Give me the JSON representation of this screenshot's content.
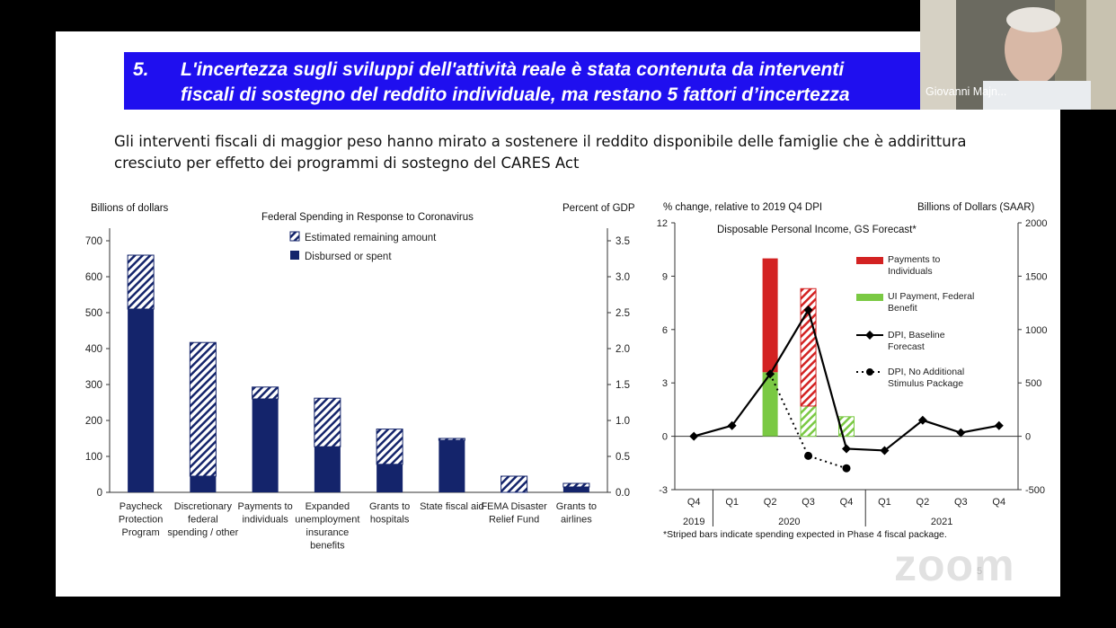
{
  "slide": {
    "title_number": "5.",
    "title_line1": "L'incertezza sugli sviluppi dell'attività reale è stata contenuta da interventi",
    "title_line2": "fiscali di sostegno del reddito individuale, ma restano 5 fattori d’incertezza",
    "subtitle_line1": "Gli interventi fiscali di maggior peso hanno mirato a sostenere il reddito disponibile delle famiglie che è addirittura",
    "subtitle_line2": "cresciuto per effetto dei programmi di sostegno del CARES Act",
    "page_number": "5"
  },
  "webcam": {
    "participant_name": "Giovanni Majn..."
  },
  "watermark": "zoom",
  "colors": {
    "title_band": "#1f0fef",
    "navy": "#14246b",
    "red": "#d32222",
    "green": "#7ac943"
  },
  "chart_data": [
    {
      "type": "bar",
      "title": "Federal Spending in Response to Coronavirus",
      "ylabel": "Billions of dollars",
      "y2label": "Percent of GDP",
      "ylim": [
        0,
        700
      ],
      "y2lim": [
        0,
        3.5
      ],
      "yticks": [
        "0",
        "100",
        "200",
        "300",
        "400",
        "500",
        "600",
        "700"
      ],
      "y2ticks": [
        "0.0",
        "0.5",
        "1.0",
        "1.5",
        "2.0",
        "2.5",
        "3.0",
        "3.5"
      ],
      "legend": [
        "Estimated remaining amount",
        "Disbursed or spent"
      ],
      "categories": [
        [
          "Paycheck",
          "Protection",
          "Program"
        ],
        [
          "Discretionary",
          "federal",
          "spending / other"
        ],
        [
          "Payments to",
          "individuals"
        ],
        [
          "Expanded",
          "unemployment",
          "insurance",
          "benefits"
        ],
        [
          "Grants to",
          "hospitals"
        ],
        [
          "State fiscal aid"
        ],
        [
          "FEMA Disaster",
          "Relief Fund"
        ],
        [
          "Grants to",
          "airlines"
        ]
      ],
      "series": [
        {
          "name": "Disbursed or spent",
          "values": [
            510,
            45,
            260,
            127,
            78,
            145,
            0,
            15
          ]
        },
        {
          "name": "Estimated remaining amount",
          "values": [
            150,
            372,
            33,
            135,
            98,
            5,
            45,
            10
          ]
        }
      ]
    },
    {
      "type": "bar",
      "title": "Disposable Personal Income, GS Forecast*",
      "ylabel": "% change, relative to 2019 Q4 DPI",
      "y2label": "Billions of Dollars (SAAR)",
      "ylim": [
        -3,
        12
      ],
      "y2lim": [
        -500,
        2000
      ],
      "yticks": [
        "-3",
        "0",
        "3",
        "6",
        "9",
        "12"
      ],
      "y2ticks": [
        "-500",
        "0",
        "500",
        "1000",
        "1500",
        "2000"
      ],
      "quarters": [
        "Q4",
        "Q1",
        "Q2",
        "Q3",
        "Q4",
        "Q1",
        "Q2",
        "Q3",
        "Q4"
      ],
      "years": [
        "2019",
        "2020",
        "2021"
      ],
      "legend": [
        [
          "Payments to",
          "Individuals"
        ],
        [
          "UI Payment, Federal",
          "Benefit"
        ],
        [
          "DPI, Baseline",
          "Forecast"
        ],
        [
          "DPI, No Additional",
          "Stimulus Package"
        ]
      ],
      "series": [
        {
          "name": "Payments to Individuals",
          "values": [
            0,
            0,
            6.4,
            0,
            0,
            0,
            0,
            0,
            0
          ],
          "striped": [
            0,
            0,
            0,
            6.6,
            0,
            0,
            0,
            0,
            0
          ]
        },
        {
          "name": "UI Payment, Federal Benefit",
          "values": [
            0,
            0,
            3.6,
            0,
            0,
            0,
            0,
            0,
            0
          ],
          "striped": [
            0,
            0,
            0,
            1.7,
            1.1,
            0,
            0,
            0,
            0
          ]
        },
        {
          "name": "DPI, Baseline Forecast",
          "values": [
            0,
            0.6,
            3.5,
            7.1,
            -0.7,
            -0.8,
            0.9,
            0.2,
            0.6
          ]
        },
        {
          "name": "DPI, No Additional Stimulus Package",
          "values": [
            null,
            null,
            3.5,
            -1.1,
            -1.8,
            null,
            null,
            null,
            null
          ]
        }
      ],
      "footnote": "*Striped bars indicate spending expected in Phase 4 fiscal package."
    }
  ]
}
